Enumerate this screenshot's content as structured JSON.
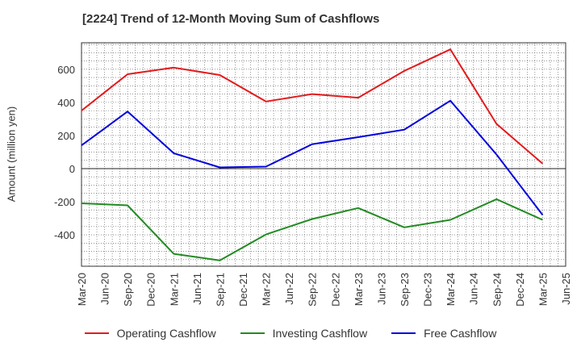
{
  "chart_data": {
    "type": "line",
    "title": "[2224]  Trend of 12-Month Moving Sum of Cashflows",
    "ylabel": "Amount (million yen)",
    "xlabel": "",
    "x": [
      "Mar-20",
      "Jun-20",
      "Sep-20",
      "Dec-20",
      "Mar-21",
      "Jun-21",
      "Sep-21",
      "Dec-21",
      "Mar-22",
      "Jun-22",
      "Sep-22",
      "Dec-22",
      "Mar-23",
      "Jun-23",
      "Sep-23",
      "Dec-23",
      "Mar-24",
      "Jun-24",
      "Sep-24",
      "Dec-24",
      "Mar-25",
      "Jun-25"
    ],
    "yticks": [
      600,
      400,
      200,
      0,
      -200,
      -400
    ],
    "ylim": [
      -590,
      760
    ],
    "grid": true,
    "legend_position": "bottom",
    "series": [
      {
        "name": "Operating Cashflow",
        "color": "#e31a1c",
        "values": [
          350,
          null,
          570,
          null,
          610,
          null,
          565,
          null,
          405,
          null,
          450,
          null,
          428,
          null,
          590,
          null,
          720,
          null,
          270,
          null,
          30,
          null
        ]
      },
      {
        "name": "Investing Cashflow",
        "color": "#228b22",
        "values": [
          -210,
          null,
          -222,
          null,
          -515,
          null,
          -555,
          null,
          -398,
          null,
          -305,
          null,
          -238,
          null,
          -355,
          null,
          -310,
          null,
          -185,
          null,
          -310,
          null
        ]
      },
      {
        "name": "Free Cashflow",
        "color": "#0000dd",
        "values": [
          140,
          null,
          345,
          null,
          93,
          null,
          7,
          null,
          12,
          null,
          147,
          null,
          190,
          null,
          235,
          null,
          410,
          null,
          85,
          null,
          -280,
          null
        ]
      }
    ]
  }
}
